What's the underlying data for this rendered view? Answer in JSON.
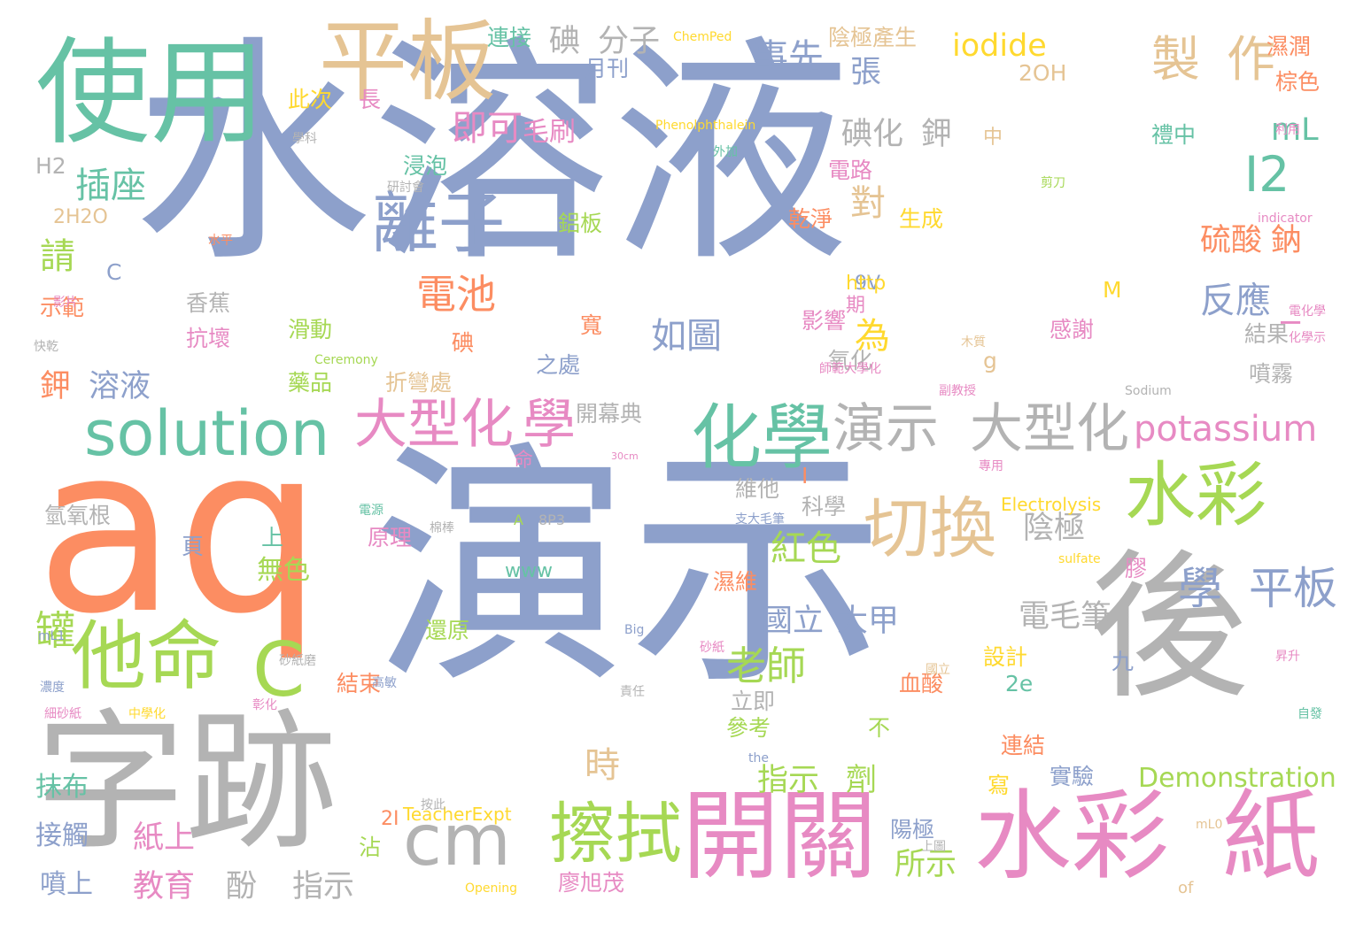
{
  "colors": {
    "blue": "#8da0cb",
    "orange": "#fc8d62",
    "green": "#66c2a5",
    "pink": "#e78ac3",
    "lime": "#a6d854",
    "tan": "#e5c494",
    "gray": "#b3b3b3",
    "yellow": "#ffd92f"
  },
  "words": [
    {
      "text": "水溶液",
      "color": "blue"
    },
    {
      "text": "演示",
      "color": "blue"
    },
    {
      "text": "aq",
      "color": "orange"
    },
    {
      "text": "後",
      "color": "gray"
    },
    {
      "text": "字跡",
      "color": "gray"
    },
    {
      "text": "使用",
      "color": "green"
    },
    {
      "text": "平板",
      "color": "tan"
    },
    {
      "text": "開關",
      "color": "pink"
    },
    {
      "text": "水彩",
      "color": "pink"
    },
    {
      "text": "紙",
      "color": "pink"
    },
    {
      "text": "solution",
      "color": "green"
    },
    {
      "text": "化學",
      "color": "green"
    },
    {
      "text": "水彩",
      "color": "lime"
    },
    {
      "text": "他命",
      "color": "lime"
    },
    {
      "text": "C",
      "color": "lime"
    },
    {
      "text": "cm",
      "color": "gray"
    },
    {
      "text": "擦拭",
      "color": "lime"
    },
    {
      "text": "切換",
      "color": "tan"
    },
    {
      "text": "離子",
      "color": "blue"
    },
    {
      "text": "大型化",
      "color": "pink"
    },
    {
      "text": "學",
      "color": "pink"
    },
    {
      "text": "演示",
      "color": "gray"
    },
    {
      "text": "大型化",
      "color": "gray"
    },
    {
      "text": "製",
      "color": "tan"
    },
    {
      "text": "作",
      "color": "tan"
    },
    {
      "text": "iodide",
      "color": "yellow"
    },
    {
      "text": "potassium",
      "color": "pink"
    },
    {
      "text": "I2",
      "color": "green"
    },
    {
      "text": "學",
      "color": "blue"
    },
    {
      "text": "平板",
      "color": "blue"
    },
    {
      "text": "插座",
      "color": "green"
    },
    {
      "text": "電池",
      "color": "orange"
    },
    {
      "text": "老師",
      "color": "lime"
    },
    {
      "text": "如圖",
      "color": "blue"
    },
    {
      "text": "反應",
      "color": "blue"
    },
    {
      "text": "即可",
      "color": "pink"
    },
    {
      "text": "事先",
      "color": "blue"
    },
    {
      "text": "張",
      "color": "blue"
    },
    {
      "text": "mL",
      "color": "green"
    },
    {
      "text": "碘",
      "color": "gray"
    },
    {
      "text": "分子",
      "color": "gray"
    },
    {
      "text": "紅色",
      "color": "lime"
    },
    {
      "text": "陰極",
      "color": "gray"
    },
    {
      "text": "電毛筆",
      "color": "gray"
    },
    {
      "text": "國立",
      "color": "blue"
    },
    {
      "text": "大甲",
      "color": "blue"
    },
    {
      "text": "Demonstration",
      "color": "lime"
    },
    {
      "text": "指示",
      "color": "lime"
    },
    {
      "text": "劑",
      "color": "lime"
    },
    {
      "text": "時",
      "color": "tan"
    },
    {
      "text": "紙上",
      "color": "pink"
    },
    {
      "text": "鉀",
      "color": "orange"
    },
    {
      "text": "溶液",
      "color": "blue"
    },
    {
      "text": "罐",
      "color": "lime"
    },
    {
      "text": "請",
      "color": "lime"
    },
    {
      "text": "對",
      "color": "tan"
    },
    {
      "text": "為",
      "color": "yellow"
    },
    {
      "text": "碘化",
      "color": "gray"
    },
    {
      "text": "鉀",
      "color": "gray"
    },
    {
      "text": "硫酸",
      "color": "orange"
    },
    {
      "text": "鈉",
      "color": "orange"
    },
    {
      "text": "所示",
      "color": "lime"
    },
    {
      "text": "教育",
      "color": "pink"
    },
    {
      "text": "指示",
      "color": "gray"
    },
    {
      "text": "酚",
      "color": "gray"
    },
    {
      "text": "噴上",
      "color": "blue"
    },
    {
      "text": "接觸",
      "color": "blue"
    },
    {
      "text": "抹布",
      "color": "green"
    },
    {
      "text": "連接",
      "color": "green"
    },
    {
      "text": "陰極產生",
      "color": "tan"
    },
    {
      "text": "濕潤",
      "color": "orange"
    },
    {
      "text": "棕色",
      "color": "orange"
    },
    {
      "text": "2OH",
      "color": "tan"
    },
    {
      "text": "毛刷",
      "color": "pink"
    },
    {
      "text": "浸泡",
      "color": "green"
    },
    {
      "text": "鋁板",
      "color": "lime"
    },
    {
      "text": "香蕉",
      "color": "gray"
    },
    {
      "text": "示範",
      "color": "orange"
    },
    {
      "text": "滑動",
      "color": "lime"
    },
    {
      "text": "藥品",
      "color": "lime"
    },
    {
      "text": "氧化",
      "color": "gray"
    },
    {
      "text": "折彎處",
      "color": "tan"
    },
    {
      "text": "之處",
      "color": "blue"
    },
    {
      "text": "開幕典",
      "color": "gray"
    },
    {
      "text": "氫氧根",
      "color": "gray"
    },
    {
      "text": "原理",
      "color": "pink"
    },
    {
      "text": "無色",
      "color": "lime"
    },
    {
      "text": "上",
      "color": "green"
    },
    {
      "text": "還原",
      "color": "lime"
    },
    {
      "text": "結束",
      "color": "orange"
    },
    {
      "text": "廖旭茂",
      "color": "pink"
    },
    {
      "text": "連結",
      "color": "orange"
    },
    {
      "text": "實驗",
      "color": "blue"
    },
    {
      "text": "噴霧",
      "color": "gray"
    },
    {
      "text": "結果",
      "color": "gray"
    },
    {
      "text": "感謝",
      "color": "pink"
    },
    {
      "text": "禮中",
      "color": "green"
    },
    {
      "text": "電路",
      "color": "pink"
    },
    {
      "text": "乾淨",
      "color": "orange"
    },
    {
      "text": "生成",
      "color": "yellow"
    },
    {
      "text": "影響",
      "color": "pink"
    },
    {
      "text": "血酸",
      "color": "orange"
    },
    {
      "text": "維他",
      "color": "gray"
    },
    {
      "text": "科學",
      "color": "gray"
    },
    {
      "text": "濕維",
      "color": "orange"
    },
    {
      "text": "參考",
      "color": "lime"
    },
    {
      "text": "立即",
      "color": "gray"
    },
    {
      "text": "設計",
      "color": "yellow"
    },
    {
      "text": "陽極",
      "color": "blue"
    },
    {
      "text": "H2",
      "color": "gray"
    },
    {
      "text": "2H2O",
      "color": "tan"
    },
    {
      "text": "抗壞",
      "color": "pink"
    },
    {
      "text": "此次",
      "color": "yellow"
    },
    {
      "text": "長",
      "color": "pink"
    },
    {
      "text": "月刊",
      "color": "blue"
    },
    {
      "text": "9V",
      "color": "blue"
    },
    {
      "text": "http",
      "color": "yellow"
    },
    {
      "text": "期",
      "color": "pink"
    },
    {
      "text": "碘",
      "color": "orange"
    },
    {
      "text": "g",
      "color": "tan"
    },
    {
      "text": "寬",
      "color": "orange"
    },
    {
      "text": "www",
      "color": "green"
    },
    {
      "text": "頁",
      "color": "blue"
    },
    {
      "text": "命",
      "color": "pink"
    },
    {
      "text": "中",
      "color": "tan"
    },
    {
      "text": "2e",
      "color": "green"
    },
    {
      "text": "九",
      "color": "blue"
    },
    {
      "text": "不",
      "color": "lime"
    },
    {
      "text": "2I",
      "color": "orange"
    },
    {
      "text": "沾",
      "color": "lime"
    },
    {
      "text": "膠",
      "color": "pink"
    },
    {
      "text": "Electrolysis",
      "color": "yellow"
    },
    {
      "text": "TeacherExpt",
      "color": "yellow"
    },
    {
      "text": "M",
      "color": "yellow"
    },
    {
      "text": "寫",
      "color": "yellow"
    },
    {
      "text": "Phenolphthalein",
      "color": "yellow"
    },
    {
      "text": "ChemPed",
      "color": "yellow"
    },
    {
      "text": "Ceremony",
      "color": "lime"
    },
    {
      "text": "Opening",
      "color": "yellow"
    },
    {
      "text": "of",
      "color": "tan"
    },
    {
      "text": "the",
      "color": "blue"
    },
    {
      "text": "A",
      "color": "lime"
    },
    {
      "text": "8P3",
      "color": "gray"
    },
    {
      "text": "30cm",
      "color": "pink"
    },
    {
      "text": "Big",
      "color": "blue"
    },
    {
      "text": "sulfate",
      "color": "yellow"
    },
    {
      "text": "Sodium",
      "color": "gray"
    },
    {
      "text": "mL1",
      "color": "blue"
    },
    {
      "text": "mL0",
      "color": "tan"
    },
    {
      "text": "indicator",
      "color": "pink"
    },
    {
      "text": "C",
      "color": "blue"
    },
    {
      "text": "I",
      "color": "orange"
    },
    {
      "text": "I",
      "color": "pink"
    },
    {
      "text": "快乾",
      "color": "gray"
    },
    {
      "text": "影片",
      "color": "pink"
    },
    {
      "text": "水平",
      "color": "orange"
    },
    {
      "text": "學科",
      "color": "gray"
    },
    {
      "text": "研討會",
      "color": "gray"
    },
    {
      "text": "外加",
      "color": "green"
    },
    {
      "text": "剪刀",
      "color": "lime"
    },
    {
      "text": "利用",
      "color": "pink"
    },
    {
      "text": "化學示",
      "color": "pink"
    },
    {
      "text": "電化學",
      "color": "pink"
    },
    {
      "text": "木質",
      "color": "tan"
    },
    {
      "text": "副教授",
      "color": "pink"
    },
    {
      "text": "師範大學化",
      "color": "pink"
    },
    {
      "text": "砂紙",
      "color": "pink"
    },
    {
      "text": "專用",
      "color": "pink"
    },
    {
      "text": "昇升",
      "color": "pink"
    },
    {
      "text": "自發",
      "color": "green"
    },
    {
      "text": "國立",
      "color": "tan"
    },
    {
      "text": "支大毛筆",
      "color": "blue"
    },
    {
      "text": "電源",
      "color": "green"
    },
    {
      "text": "棉棒",
      "color": "gray"
    },
    {
      "text": "責任",
      "color": "gray"
    },
    {
      "text": "細砂紙",
      "color": "pink"
    },
    {
      "text": "中學化",
      "color": "yellow"
    },
    {
      "text": "濃度",
      "color": "blue"
    },
    {
      "text": "彰化",
      "color": "pink"
    },
    {
      "text": "砂紙磨",
      "color": "gray"
    },
    {
      "text": "高敏",
      "color": "blue"
    },
    {
      "text": "按此",
      "color": "gray"
    },
    {
      "text": "上圖",
      "color": "gray"
    }
  ]
}
